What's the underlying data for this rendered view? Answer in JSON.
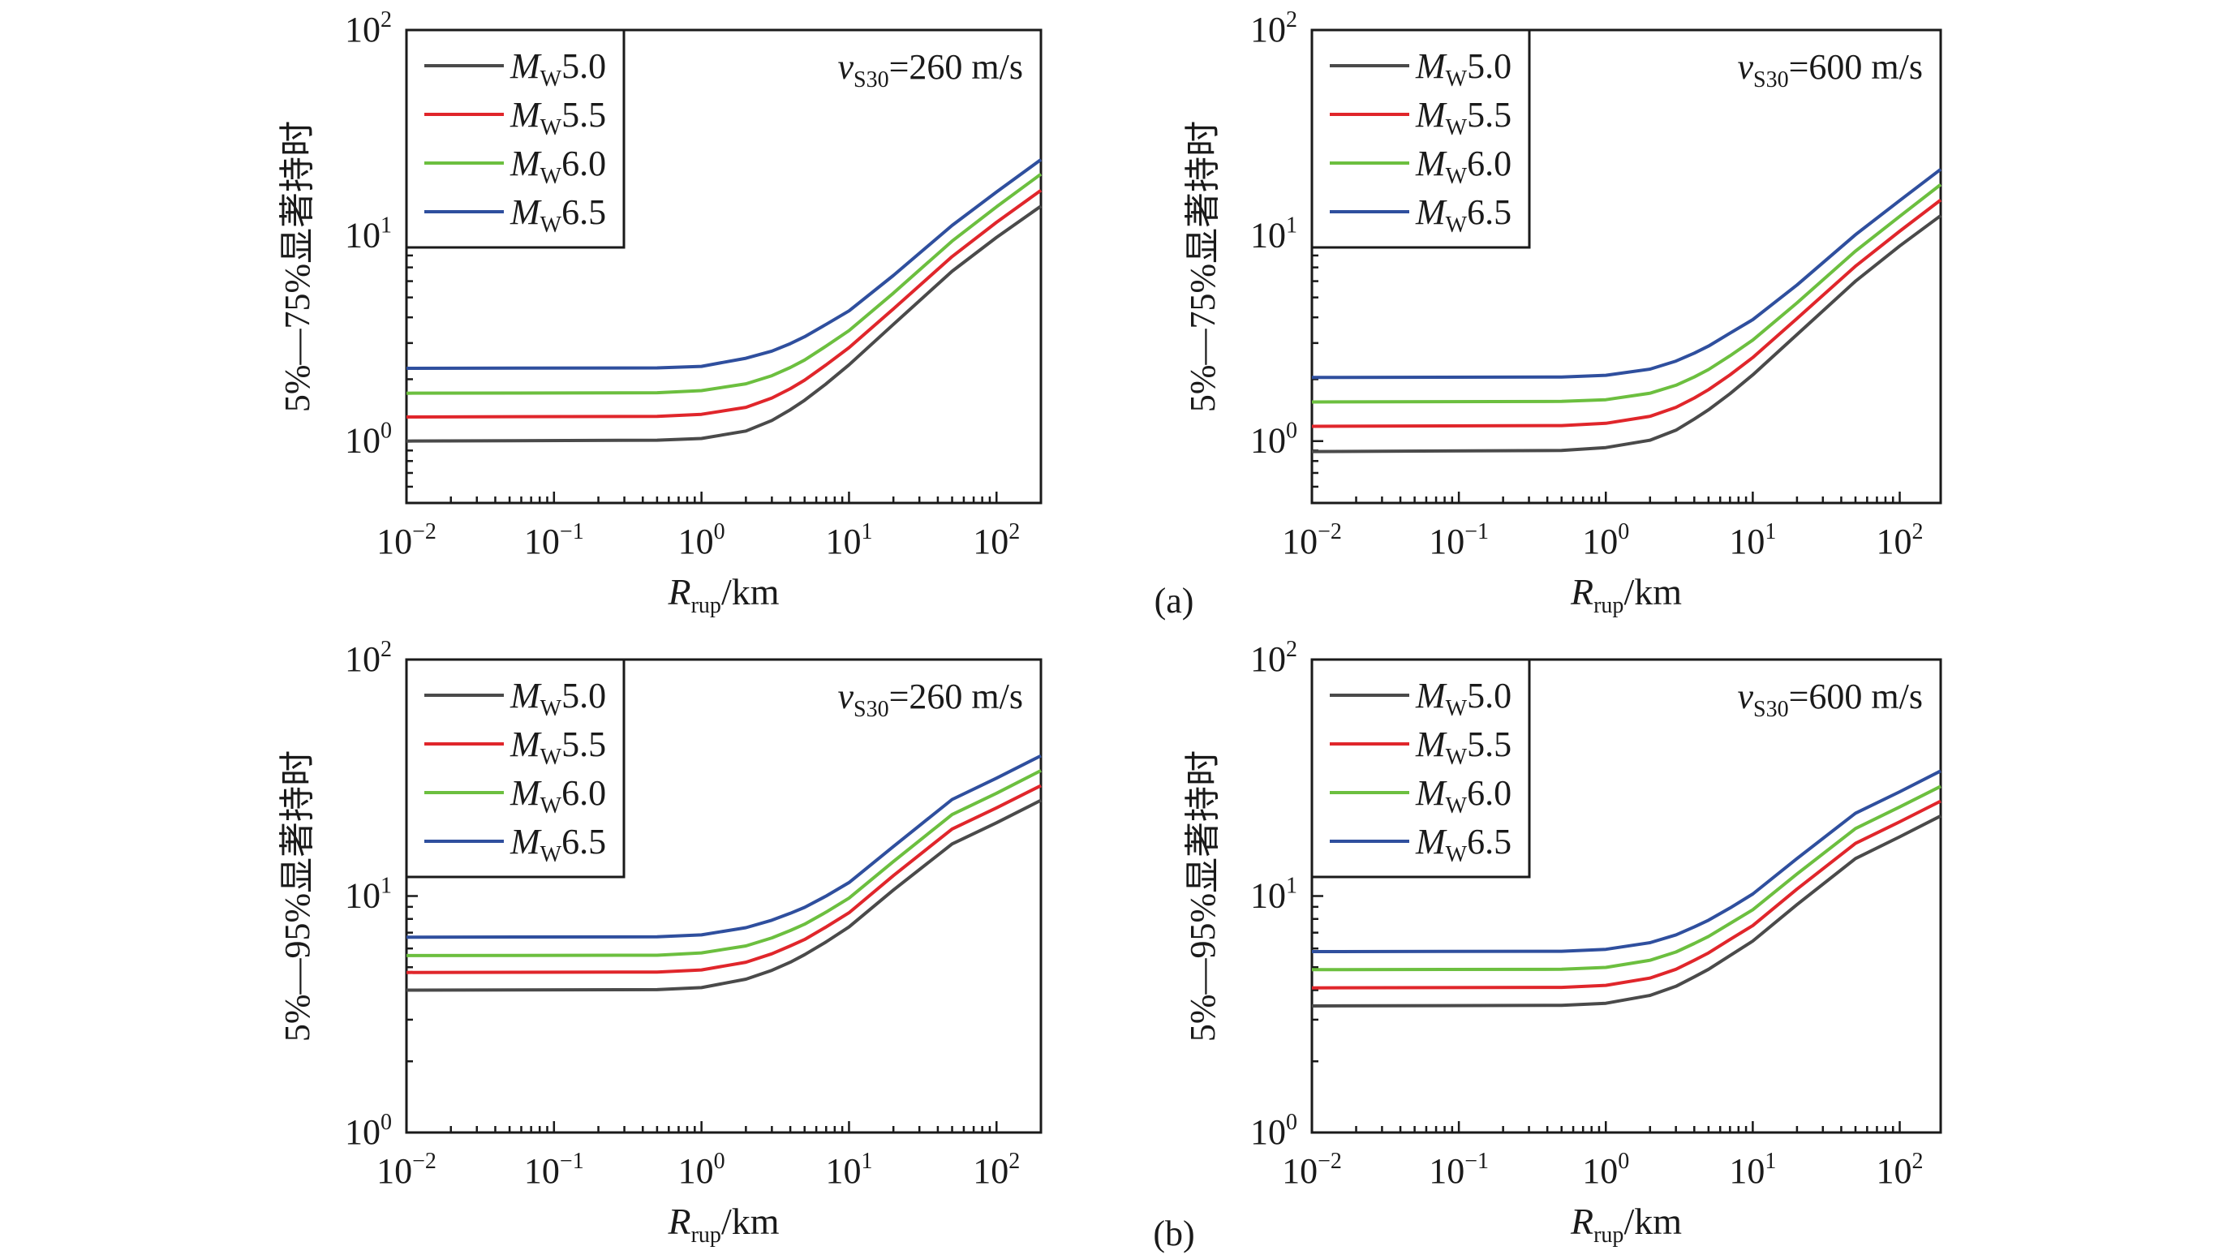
{
  "figure": {
    "panel_labels": [
      "(a)",
      "(b)"
    ]
  },
  "chart_data": [
    {
      "type": "line",
      "id": "a-left",
      "group": "(a)",
      "annotation": {
        "v": "v",
        "sub": "S30",
        "text": "=260 m/s"
      },
      "xlabel": {
        "main": "R",
        "sub": "rup",
        "unit": "/km"
      },
      "ylabel": "5%—75%显著持时",
      "xscale": "log",
      "yscale": "log",
      "xlim": [
        0.01,
        200
      ],
      "ylim": [
        0.5,
        100
      ],
      "xticks": [
        {
          "base": "10",
          "exp": "−2",
          "value": 0.01
        },
        {
          "base": "10",
          "exp": "−1",
          "value": 0.1
        },
        {
          "base": "10",
          "exp": "0",
          "value": 1
        },
        {
          "base": "10",
          "exp": "1",
          "value": 10
        },
        {
          "base": "10",
          "exp": "2",
          "value": 100
        }
      ],
      "yticks": [
        {
          "base": "10",
          "exp": "0",
          "value": 1
        },
        {
          "base": "10",
          "exp": "1",
          "value": 10
        },
        {
          "base": "10",
          "exp": "2",
          "value": 100
        }
      ],
      "legend_position": "top-left",
      "x": [
        0.01,
        0.5,
        1,
        2,
        3,
        4,
        5,
        7,
        10,
        20,
        50,
        100,
        200
      ],
      "series": [
        {
          "name": "Mw5.0",
          "label_main": "M",
          "label_sub": "W",
          "label_val": "5.0",
          "color": "#4a4a4a",
          "values": [
            1.0,
            1.01,
            1.03,
            1.12,
            1.26,
            1.42,
            1.58,
            1.9,
            2.35,
            3.7,
            6.7,
            9.8,
            13.9
          ]
        },
        {
          "name": "Mw5.5",
          "label_main": "M",
          "label_sub": "W",
          "label_val": "5.5",
          "color": "#e0262b",
          "values": [
            1.31,
            1.32,
            1.35,
            1.46,
            1.62,
            1.8,
            1.98,
            2.35,
            2.85,
            4.4,
            7.9,
            11.6,
            16.6
          ]
        },
        {
          "name": "Mw6.0",
          "label_main": "M",
          "label_sub": "W",
          "label_val": "6.0",
          "color": "#6cbf3f",
          "values": [
            1.71,
            1.72,
            1.76,
            1.9,
            2.08,
            2.28,
            2.48,
            2.9,
            3.45,
            5.25,
            9.4,
            13.8,
            19.9
          ]
        },
        {
          "name": "Mw6.5",
          "label_main": "M",
          "label_sub": "W",
          "label_val": "6.5",
          "color": "#2f4f9e",
          "values": [
            2.26,
            2.27,
            2.31,
            2.53,
            2.74,
            2.98,
            3.22,
            3.7,
            4.3,
            6.4,
            11.2,
            16.3,
            23.4
          ]
        }
      ]
    },
    {
      "type": "line",
      "id": "a-right",
      "group": "(a)",
      "annotation": {
        "v": "v",
        "sub": "S30",
        "text": "=600 m/s"
      },
      "xlabel": {
        "main": "R",
        "sub": "rup",
        "unit": "/km"
      },
      "ylabel": "5%—75%显著持时",
      "xscale": "log",
      "yscale": "log",
      "xlim": [
        0.01,
        190
      ],
      "ylim": [
        0.5,
        100
      ],
      "xticks": [
        {
          "base": "10",
          "exp": "−2",
          "value": 0.01
        },
        {
          "base": "10",
          "exp": "−1",
          "value": 0.1
        },
        {
          "base": "10",
          "exp": "0",
          "value": 1
        },
        {
          "base": "10",
          "exp": "1",
          "value": 10
        },
        {
          "base": "10",
          "exp": "2",
          "value": 100
        }
      ],
      "yticks": [
        {
          "base": "10",
          "exp": "0",
          "value": 1
        },
        {
          "base": "10",
          "exp": "1",
          "value": 10
        },
        {
          "base": "10",
          "exp": "2",
          "value": 100
        }
      ],
      "legend_position": "top-left",
      "x": [
        0.01,
        0.5,
        1,
        2,
        3,
        4,
        5,
        7,
        10,
        20,
        50,
        100,
        190
      ],
      "series": [
        {
          "name": "Mw5.0",
          "label_main": "M",
          "label_sub": "W",
          "label_val": "5.0",
          "color": "#4a4a4a",
          "values": [
            0.89,
            0.9,
            0.93,
            1.01,
            1.13,
            1.28,
            1.42,
            1.7,
            2.1,
            3.3,
            6.0,
            8.9,
            12.5
          ]
        },
        {
          "name": "Mw5.5",
          "label_main": "M",
          "label_sub": "W",
          "label_val": "5.5",
          "color": "#e0262b",
          "values": [
            1.18,
            1.19,
            1.22,
            1.32,
            1.46,
            1.62,
            1.78,
            2.1,
            2.55,
            3.95,
            7.1,
            10.5,
            14.9
          ]
        },
        {
          "name": "Mw6.0",
          "label_main": "M",
          "label_sub": "W",
          "label_val": "6.0",
          "color": "#6cbf3f",
          "values": [
            1.55,
            1.56,
            1.59,
            1.71,
            1.87,
            2.05,
            2.23,
            2.6,
            3.1,
            4.7,
            8.4,
            12.4,
            17.7
          ]
        },
        {
          "name": "Mw6.5",
          "label_main": "M",
          "label_sub": "W",
          "label_val": "6.5",
          "color": "#2f4f9e",
          "values": [
            2.04,
            2.05,
            2.09,
            2.24,
            2.45,
            2.68,
            2.9,
            3.35,
            3.9,
            5.75,
            10.1,
            14.8,
            21.0
          ]
        }
      ]
    },
    {
      "type": "line",
      "id": "b-left",
      "group": "(b)",
      "annotation": {
        "v": "v",
        "sub": "S30",
        "text": "=260 m/s"
      },
      "xlabel": {
        "main": "R",
        "sub": "rup",
        "unit": "/km"
      },
      "ylabel": "5%—95%显著持时",
      "xscale": "log",
      "yscale": "log",
      "xlim": [
        0.01,
        200
      ],
      "ylim": [
        1,
        100
      ],
      "xticks": [
        {
          "base": "10",
          "exp": "−2",
          "value": 0.01
        },
        {
          "base": "10",
          "exp": "−1",
          "value": 0.1
        },
        {
          "base": "10",
          "exp": "0",
          "value": 1
        },
        {
          "base": "10",
          "exp": "1",
          "value": 10
        },
        {
          "base": "10",
          "exp": "2",
          "value": 100
        }
      ],
      "yticks": [
        {
          "base": "10",
          "exp": "0",
          "value": 1
        },
        {
          "base": "10",
          "exp": "1",
          "value": 10
        },
        {
          "base": "10",
          "exp": "2",
          "value": 100
        }
      ],
      "legend_position": "top-left",
      "x": [
        0.01,
        0.5,
        1,
        2,
        3,
        4,
        5,
        7,
        10,
        20,
        50,
        100,
        200
      ],
      "series": [
        {
          "name": "Mw5.0",
          "label_main": "M",
          "label_sub": "W",
          "label_val": "5.0",
          "color": "#4a4a4a",
          "values": [
            4.0,
            4.02,
            4.1,
            4.45,
            4.85,
            5.25,
            5.65,
            6.4,
            7.4,
            10.6,
            16.6,
            20.4,
            25.4
          ]
        },
        {
          "name": "Mw5.5",
          "label_main": "M",
          "label_sub": "W",
          "label_val": "5.5",
          "color": "#e0262b",
          "values": [
            4.75,
            4.77,
            4.87,
            5.25,
            5.7,
            6.15,
            6.55,
            7.4,
            8.5,
            12.2,
            19.2,
            23.6,
            29.3
          ]
        },
        {
          "name": "Mw6.0",
          "label_main": "M",
          "label_sub": "W",
          "label_val": "6.0",
          "color": "#6cbf3f",
          "values": [
            5.6,
            5.62,
            5.75,
            6.15,
            6.65,
            7.15,
            7.6,
            8.55,
            9.8,
            14.0,
            22.1,
            27.2,
            33.9
          ]
        },
        {
          "name": "Mw6.5",
          "label_main": "M",
          "label_sub": "W",
          "label_val": "6.5",
          "color": "#2f4f9e",
          "values": [
            6.7,
            6.72,
            6.85,
            7.35,
            7.9,
            8.45,
            8.95,
            10.0,
            11.4,
            16.2,
            25.6,
            31.5,
            39.2
          ]
        }
      ]
    },
    {
      "type": "line",
      "id": "b-right",
      "group": "(b)",
      "annotation": {
        "v": "v",
        "sub": "S30",
        "text": "=600 m/s"
      },
      "xlabel": {
        "main": "R",
        "sub": "rup",
        "unit": "/km"
      },
      "ylabel": "5%—95%显著持时",
      "xscale": "log",
      "yscale": "log",
      "xlim": [
        0.01,
        190
      ],
      "ylim": [
        1,
        100
      ],
      "xticks": [
        {
          "base": "10",
          "exp": "−2",
          "value": 0.01
        },
        {
          "base": "10",
          "exp": "−1",
          "value": 0.1
        },
        {
          "base": "10",
          "exp": "0",
          "value": 1
        },
        {
          "base": "10",
          "exp": "1",
          "value": 10
        },
        {
          "base": "10",
          "exp": "2",
          "value": 100
        }
      ],
      "yticks": [
        {
          "base": "10",
          "exp": "0",
          "value": 1
        },
        {
          "base": "10",
          "exp": "1",
          "value": 10
        },
        {
          "base": "10",
          "exp": "2",
          "value": 100
        }
      ],
      "legend_position": "top-left",
      "x": [
        0.01,
        0.5,
        1,
        2,
        3,
        4,
        5,
        7,
        10,
        20,
        50,
        100,
        190
      ],
      "series": [
        {
          "name": "Mw5.0",
          "label_main": "M",
          "label_sub": "W",
          "label_val": "5.0",
          "color": "#4a4a4a",
          "values": [
            3.43,
            3.45,
            3.52,
            3.8,
            4.15,
            4.55,
            4.9,
            5.6,
            6.45,
            9.2,
            14.4,
            17.8,
            21.8
          ]
        },
        {
          "name": "Mw5.5",
          "label_main": "M",
          "label_sub": "W",
          "label_val": "5.5",
          "color": "#e0262b",
          "values": [
            4.09,
            4.11,
            4.19,
            4.5,
            4.9,
            5.35,
            5.75,
            6.55,
            7.5,
            10.7,
            16.7,
            20.6,
            25.2
          ]
        },
        {
          "name": "Mw6.0",
          "label_main": "M",
          "label_sub": "W",
          "label_val": "6.0",
          "color": "#6cbf3f",
          "values": [
            4.88,
            4.9,
            4.99,
            5.35,
            5.8,
            6.3,
            6.75,
            7.65,
            8.75,
            12.4,
            19.3,
            23.8,
            29.1
          ]
        },
        {
          "name": "Mw6.5",
          "label_main": "M",
          "label_sub": "W",
          "label_val": "6.5",
          "color": "#2f4f9e",
          "values": [
            5.82,
            5.84,
            5.95,
            6.35,
            6.85,
            7.4,
            7.9,
            8.9,
            10.2,
            14.4,
            22.4,
            27.6,
            33.8
          ]
        }
      ]
    }
  ]
}
